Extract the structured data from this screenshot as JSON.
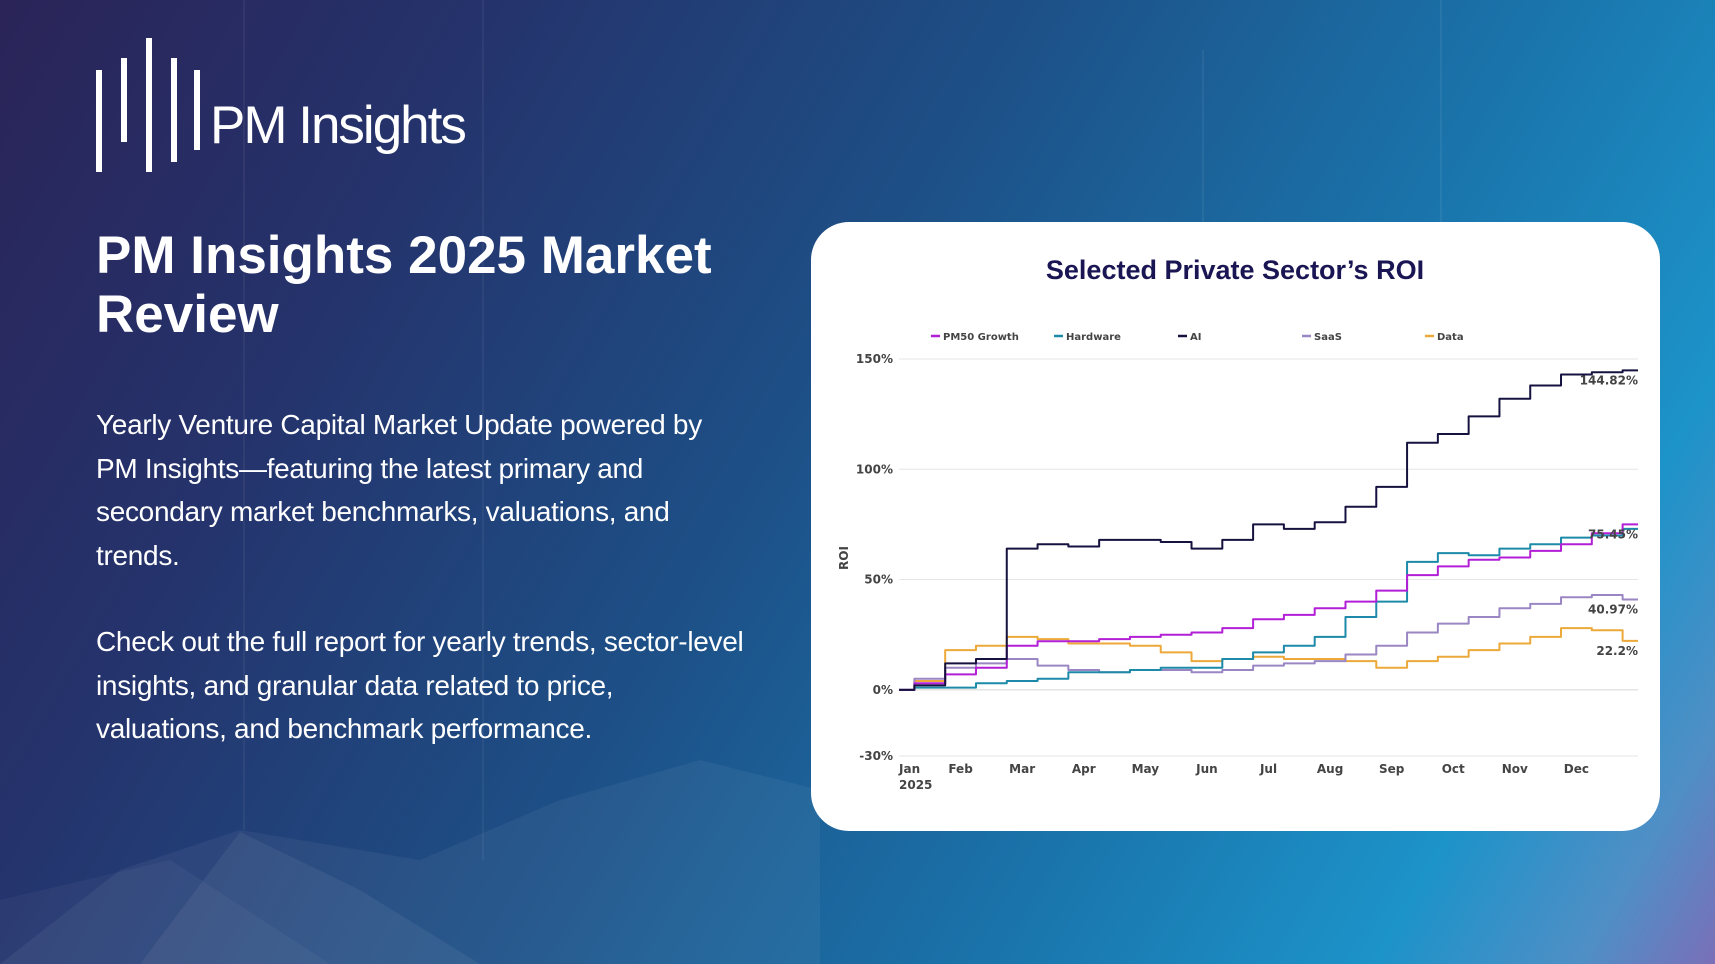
{
  "brand": {
    "name": "PM Insights"
  },
  "header": {
    "title": "PM Insights 2025 Market Review"
  },
  "intro": {
    "paragraph1": "Yearly Venture Capital Market Update powered by PM Insights—featuring the latest primary and secondary market benchmarks, valuations, and trends.",
    "paragraph2": "Check out the full report for yearly trends, sector-level insights, and granular data related to price, valuations, and benchmark performance."
  },
  "colors": {
    "background_start": "#2a2458",
    "background_end": "#1c93c9",
    "chart_title": "#1a1654",
    "pm50_growth": "#b21fd6",
    "hardware": "#1c8aa8",
    "ai": "#16123f",
    "saas": "#9a86c2",
    "data": "#eca93a"
  },
  "chart_data": {
    "type": "line",
    "title": "Selected Private Sector’s ROI",
    "xlabel": "",
    "ylabel": "ROI",
    "x_tick_labels": [
      "Jan",
      "Feb",
      "Mar",
      "Apr",
      "May",
      "Jun",
      "Jul",
      "Aug",
      "Sep",
      "Oct",
      "Nov",
      "Dec"
    ],
    "x_tick_sublabel": "2025",
    "y_ticks": [
      150,
      100,
      50,
      0,
      -30
    ],
    "y_tick_labels": [
      "150%",
      "100%",
      "50%",
      "0%",
      "-30%"
    ],
    "ylim": [
      -30,
      150
    ],
    "grid": true,
    "legend_position": "top",
    "x": [
      "Jan 1",
      "Jan 15",
      "Feb 1",
      "Feb 15",
      "Mar 1",
      "Mar 15",
      "Apr 1",
      "Apr 15",
      "May 1",
      "May 15",
      "Jun 1",
      "Jun 15",
      "Jul 1",
      "Jul 15",
      "Aug 1",
      "Aug 15",
      "Sep 1",
      "Sep 15",
      "Oct 1",
      "Oct 15",
      "Nov 1",
      "Nov 15",
      "Dec 1",
      "Dec 15",
      "Dec 31"
    ],
    "series": [
      {
        "name": "PM50 Growth",
        "color": "#b21fd6",
        "end_label": "75.45%",
        "values": [
          0,
          3,
          7,
          10,
          20,
          22,
          22,
          23,
          24,
          25,
          26,
          28,
          32,
          34,
          37,
          40,
          45,
          52,
          56,
          59,
          60,
          63,
          66,
          71,
          75
        ]
      },
      {
        "name": "Hardware",
        "color": "#1c8aa8",
        "end_label": "",
        "values": [
          0,
          1,
          1,
          3,
          4,
          5,
          8,
          8,
          9,
          10,
          10,
          14,
          17,
          20,
          24,
          33,
          40,
          58,
          62,
          61,
          64,
          66,
          69,
          70,
          73
        ]
      },
      {
        "name": "AI",
        "color": "#16123f",
        "end_label": "144.82%",
        "values": [
          0,
          2,
          12,
          14,
          64,
          66,
          65,
          68,
          68,
          67,
          64,
          68,
          75,
          73,
          76,
          83,
          92,
          112,
          116,
          124,
          132,
          138,
          143,
          144,
          144.82
        ]
      },
      {
        "name": "SaaS",
        "color": "#9a86c2",
        "end_label": "40.97%",
        "values": [
          0,
          5,
          10,
          12,
          14,
          11,
          9,
          8,
          9,
          9,
          8,
          9,
          11,
          12,
          13,
          16,
          20,
          26,
          30,
          33,
          37,
          39,
          42,
          43,
          40.97
        ]
      },
      {
        "name": "Data",
        "color": "#eca93a",
        "end_label": "22.2%",
        "values": [
          0,
          4,
          18,
          20,
          24,
          23,
          21,
          21,
          20,
          17,
          13,
          14,
          15,
          14,
          14,
          13,
          10,
          13,
          15,
          18,
          21,
          24,
          28,
          27,
          22.2
        ]
      }
    ]
  }
}
